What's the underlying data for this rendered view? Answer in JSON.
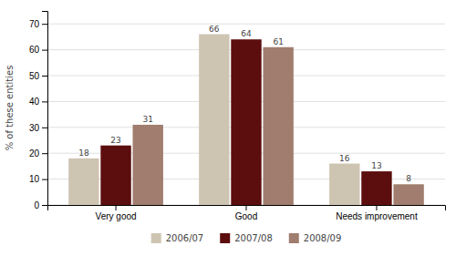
{
  "chart_data": {
    "type": "bar",
    "categories": [
      "Very good",
      "Good",
      "Needs improvement"
    ],
    "series": [
      {
        "name": "2006/07",
        "color": "#cec4b2",
        "values": [
          18,
          66,
          16
        ]
      },
      {
        "name": "2007/08",
        "color": "#5c0d0d",
        "values": [
          23,
          64,
          13
        ]
      },
      {
        "name": "2008/09",
        "color": "#a07d6e",
        "values": [
          31,
          61,
          8
        ]
      }
    ],
    "ylabel": "% of these entities",
    "ylim": [
      0,
      75
    ],
    "yticks": [
      0,
      10,
      20,
      30,
      40,
      50,
      60,
      70
    ],
    "grid": true,
    "legend": "bottom",
    "data_labels": true
  }
}
